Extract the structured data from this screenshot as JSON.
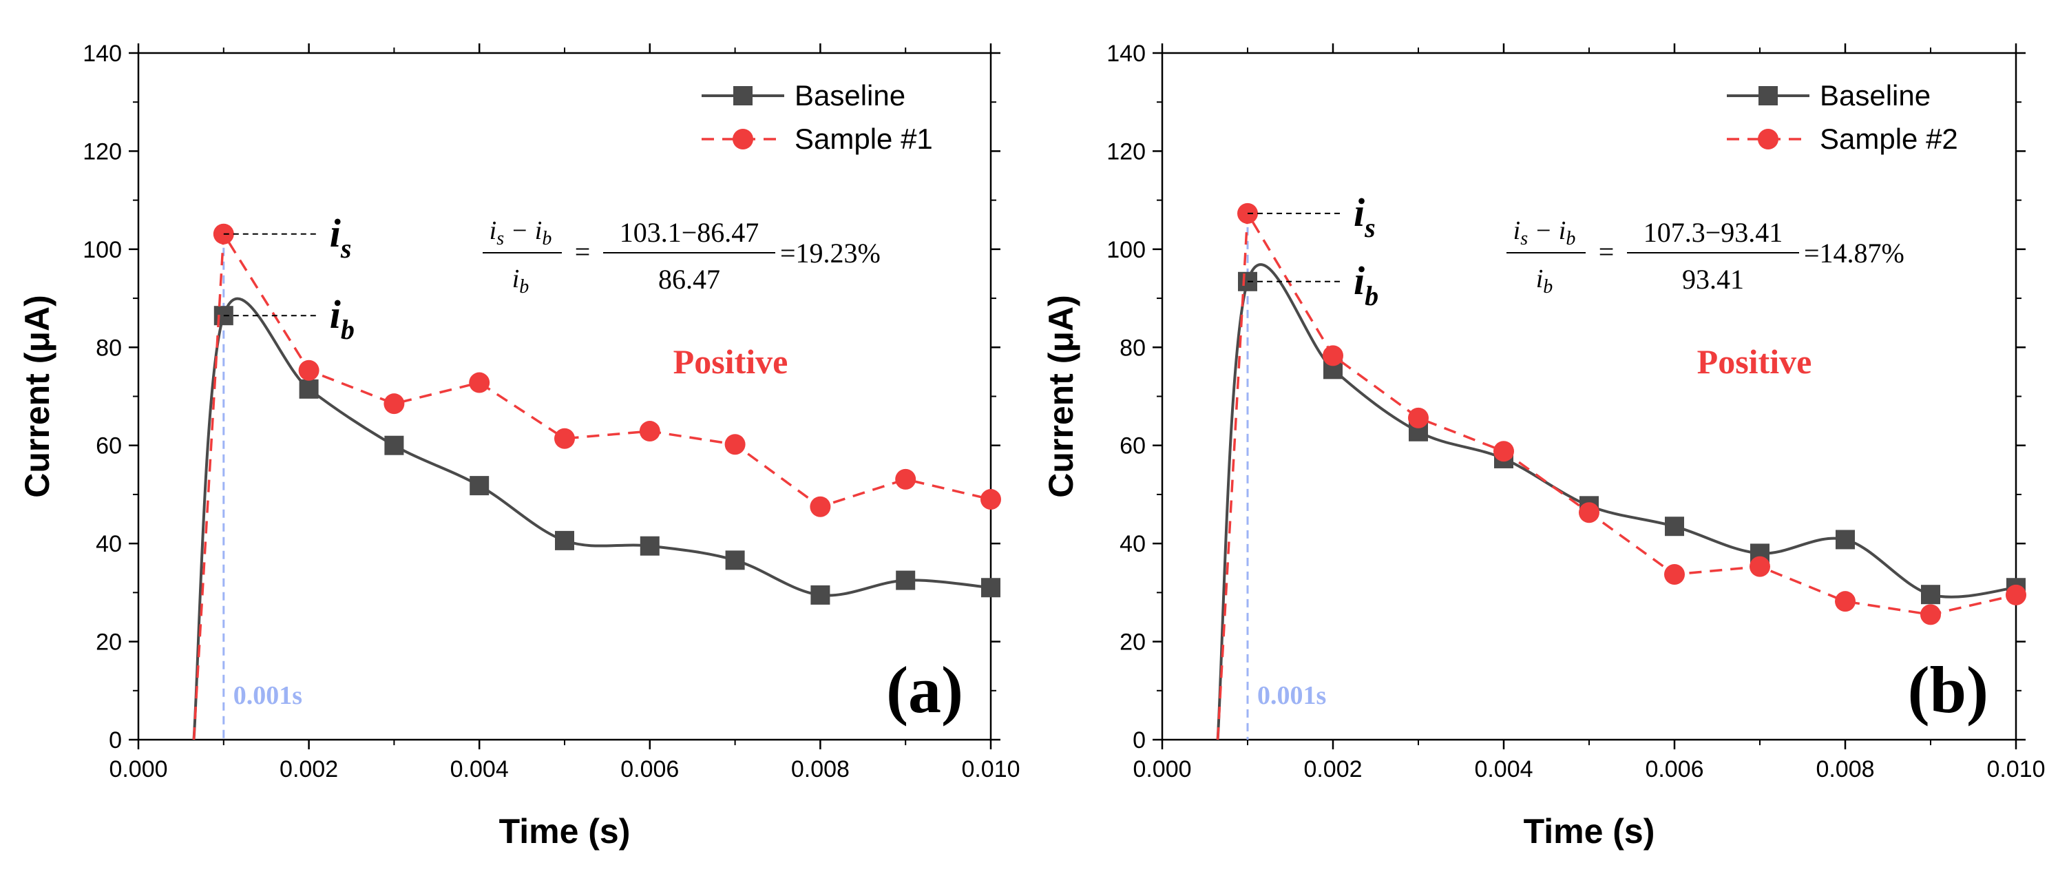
{
  "colors": {
    "baseline": "#4a4a4a",
    "sample": "#f03c3c",
    "marker_line": "#9db3f5",
    "axis": "#000000"
  },
  "chart_data": [
    {
      "type": "line",
      "panel_label": "(a)",
      "xlabel": "Time (s)",
      "ylabel": "Current (μA)",
      "xlim": [
        0,
        0.01
      ],
      "ylim": [
        0,
        140
      ],
      "x_ticks": [
        "0.000",
        "0.002",
        "0.004",
        "0.006",
        "0.008",
        "0.010"
      ],
      "y_ticks": [
        "0",
        "20",
        "40",
        "60",
        "80",
        "100",
        "120",
        "140"
      ],
      "series": [
        {
          "name": "Baseline",
          "style": "solid-square",
          "x": [
            0.00065,
            0.001,
            0.002,
            0.003,
            0.004,
            0.005,
            0.006,
            0.007,
            0.008,
            0.009,
            0.01
          ],
          "values": [
            0,
            86.47,
            71.5,
            60.0,
            51.8,
            40.6,
            39.5,
            36.6,
            29.5,
            32.5,
            31.0
          ]
        },
        {
          "name": "Sample #1",
          "style": "dashed-circle",
          "x": [
            0.00065,
            0.001,
            0.002,
            0.003,
            0.004,
            0.005,
            0.006,
            0.007,
            0.008,
            0.009,
            0.01
          ],
          "values": [
            0,
            103.1,
            75.3,
            68.5,
            72.8,
            61.4,
            62.9,
            60.2,
            47.5,
            53.1,
            49.0
          ]
        }
      ],
      "is_label": "s",
      "ib_label": "b",
      "is_value": 103.1,
      "ib_value": 86.47,
      "formula": {
        "num_value": "103.1−86.47",
        "den_value": "86.47",
        "result": "=19.23%"
      },
      "result_text": "Positive",
      "marker_time_label": "0.001s",
      "marker_time": 0.001
    },
    {
      "type": "line",
      "panel_label": "(b)",
      "xlabel": "Time (s)",
      "ylabel": "Current (μA)",
      "xlim": [
        0,
        0.01
      ],
      "ylim": [
        0,
        140
      ],
      "x_ticks": [
        "0.000",
        "0.002",
        "0.004",
        "0.006",
        "0.008",
        "0.010"
      ],
      "y_ticks": [
        "0",
        "20",
        "40",
        "60",
        "80",
        "100",
        "120",
        "140"
      ],
      "series": [
        {
          "name": "Baseline",
          "style": "solid-square",
          "x": [
            0.00065,
            0.001,
            0.002,
            0.003,
            0.004,
            0.005,
            0.006,
            0.007,
            0.008,
            0.009,
            0.01
          ],
          "values": [
            0,
            93.41,
            75.5,
            62.8,
            57.3,
            47.7,
            43.5,
            38.0,
            40.8,
            29.6,
            31.0
          ]
        },
        {
          "name": "Sample #2",
          "style": "dashed-circle",
          "x": [
            0.00065,
            0.001,
            0.002,
            0.003,
            0.004,
            0.005,
            0.006,
            0.007,
            0.008,
            0.009,
            0.01
          ],
          "values": [
            0,
            107.3,
            78.3,
            65.6,
            58.8,
            46.3,
            33.7,
            35.3,
            28.2,
            25.5,
            29.5
          ]
        }
      ],
      "is_label": "s",
      "ib_label": "b",
      "is_value": 107.3,
      "ib_value": 93.41,
      "formula": {
        "num_value": "107.3−93.41",
        "den_value": "93.41",
        "result": "=14.87%"
      },
      "result_text": "Positive",
      "marker_time_label": "0.001s",
      "marker_time": 0.001
    }
  ]
}
